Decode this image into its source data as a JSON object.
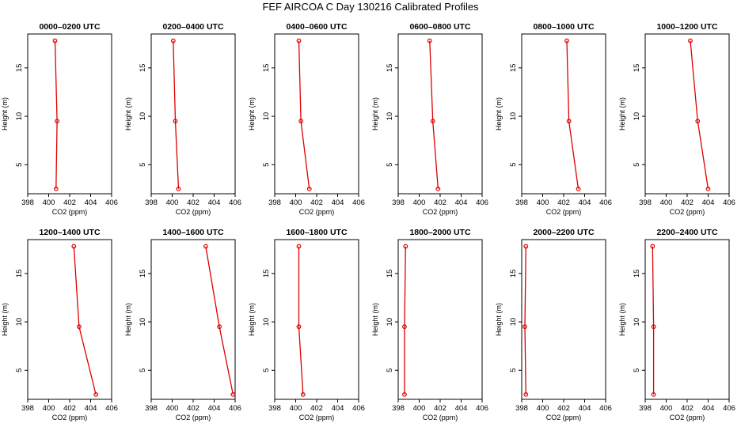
{
  "title": "FEF AIRCOA C  Day 130216  Calibrated Profiles",
  "colors": {
    "series": "#dd0000",
    "axes": "#000000",
    "background": "#ffffff"
  },
  "chart_data": [
    {
      "type": "line",
      "title": "0000–0200 UTC",
      "xlabel": "CO2 (ppm)",
      "ylabel": "Height (m)",
      "xlim": [
        398,
        406
      ],
      "ylim": [
        2,
        18.5
      ],
      "xticks": [
        398,
        400,
        402,
        404,
        406
      ],
      "yticks": [
        5,
        10,
        15
      ],
      "x": [
        400.6,
        400.8,
        400.7
      ],
      "y": [
        17.8,
        9.5,
        2.5
      ]
    },
    {
      "type": "line",
      "title": "0200–0400 UTC",
      "xlabel": "CO2 (ppm)",
      "ylabel": "Height (m)",
      "xlim": [
        398,
        406
      ],
      "ylim": [
        2,
        18.5
      ],
      "xticks": [
        398,
        400,
        402,
        404,
        406
      ],
      "yticks": [
        5,
        10,
        15
      ],
      "x": [
        400.1,
        400.3,
        400.6
      ],
      "y": [
        17.8,
        9.5,
        2.5
      ]
    },
    {
      "type": "line",
      "title": "0400–0600 UTC",
      "xlabel": "CO2 (ppm)",
      "ylabel": "Height (m)",
      "xlim": [
        398,
        406
      ],
      "ylim": [
        2,
        18.5
      ],
      "xticks": [
        398,
        400,
        402,
        404,
        406
      ],
      "yticks": [
        5,
        10,
        15
      ],
      "x": [
        400.3,
        400.5,
        401.3
      ],
      "y": [
        17.8,
        9.5,
        2.5
      ]
    },
    {
      "type": "line",
      "title": "0600–0800 UTC",
      "xlabel": "CO2 (ppm)",
      "ylabel": "Height (m)",
      "xlim": [
        398,
        406
      ],
      "ylim": [
        2,
        18.5
      ],
      "xticks": [
        398,
        400,
        402,
        404,
        406
      ],
      "yticks": [
        5,
        10,
        15
      ],
      "x": [
        401.0,
        401.3,
        401.8
      ],
      "y": [
        17.8,
        9.5,
        2.5
      ]
    },
    {
      "type": "line",
      "title": "0800–1000 UTC",
      "xlabel": "CO2 (ppm)",
      "ylabel": "Height (m)",
      "xlim": [
        398,
        406
      ],
      "ylim": [
        2,
        18.5
      ],
      "xticks": [
        398,
        400,
        402,
        404,
        406
      ],
      "yticks": [
        5,
        10,
        15
      ],
      "x": [
        402.3,
        402.5,
        403.4
      ],
      "y": [
        17.8,
        9.5,
        2.5
      ]
    },
    {
      "type": "line",
      "title": "1000–1200 UTC",
      "xlabel": "CO2 (ppm)",
      "ylabel": "Height (m)",
      "xlim": [
        398,
        406
      ],
      "ylim": [
        2,
        18.5
      ],
      "xticks": [
        398,
        400,
        402,
        404,
        406
      ],
      "yticks": [
        5,
        10,
        15
      ],
      "x": [
        402.3,
        403.0,
        404.0
      ],
      "y": [
        17.8,
        9.5,
        2.5
      ]
    },
    {
      "type": "line",
      "title": "1200–1400 UTC",
      "xlabel": "CO2 (ppm)",
      "ylabel": "Height (m)",
      "xlim": [
        398,
        406
      ],
      "ylim": [
        2,
        18.5
      ],
      "xticks": [
        398,
        400,
        402,
        404,
        406
      ],
      "yticks": [
        5,
        10,
        15
      ],
      "x": [
        402.4,
        402.9,
        404.5
      ],
      "y": [
        17.8,
        9.5,
        2.5
      ]
    },
    {
      "type": "line",
      "title": "1400–1600 UTC",
      "xlabel": "CO2 (ppm)",
      "ylabel": "Height (m)",
      "xlim": [
        398,
        406
      ],
      "ylim": [
        2,
        18.5
      ],
      "xticks": [
        398,
        400,
        402,
        404,
        406
      ],
      "yticks": [
        5,
        10,
        15
      ],
      "x": [
        403.2,
        404.5,
        405.8
      ],
      "y": [
        17.8,
        9.5,
        2.5
      ]
    },
    {
      "type": "line",
      "title": "1600–1800 UTC",
      "xlabel": "CO2 (ppm)",
      "ylabel": "Height (m)",
      "xlim": [
        398,
        406
      ],
      "ylim": [
        2,
        18.5
      ],
      "xticks": [
        398,
        400,
        402,
        404,
        406
      ],
      "yticks": [
        5,
        10,
        15
      ],
      "x": [
        400.3,
        400.3,
        400.7
      ],
      "y": [
        17.8,
        9.5,
        2.5
      ]
    },
    {
      "type": "line",
      "title": "1800–2000 UTC",
      "xlabel": "CO2 (ppm)",
      "ylabel": "Height (m)",
      "xlim": [
        398,
        406
      ],
      "ylim": [
        2,
        18.5
      ],
      "xticks": [
        398,
        400,
        402,
        404,
        406
      ],
      "yticks": [
        5,
        10,
        15
      ],
      "x": [
        398.7,
        398.6,
        398.6
      ],
      "y": [
        17.8,
        9.5,
        2.5
      ]
    },
    {
      "type": "line",
      "title": "2000–2200 UTC",
      "xlabel": "CO2 (ppm)",
      "ylabel": "Height (m)",
      "xlim": [
        398,
        406
      ],
      "ylim": [
        2,
        18.5
      ],
      "xticks": [
        398,
        400,
        402,
        404,
        406
      ],
      "yticks": [
        5,
        10,
        15
      ],
      "x": [
        398.4,
        398.3,
        398.4
      ],
      "y": [
        17.8,
        9.5,
        2.5
      ]
    },
    {
      "type": "line",
      "title": "2200–2400 UTC",
      "xlabel": "CO2 (ppm)",
      "ylabel": "Height (m)",
      "xlim": [
        398,
        406
      ],
      "ylim": [
        2,
        18.5
      ],
      "xticks": [
        398,
        400,
        402,
        404,
        406
      ],
      "yticks": [
        5,
        10,
        15
      ],
      "x": [
        398.7,
        398.8,
        398.8
      ],
      "y": [
        17.8,
        9.5,
        2.5
      ]
    }
  ]
}
